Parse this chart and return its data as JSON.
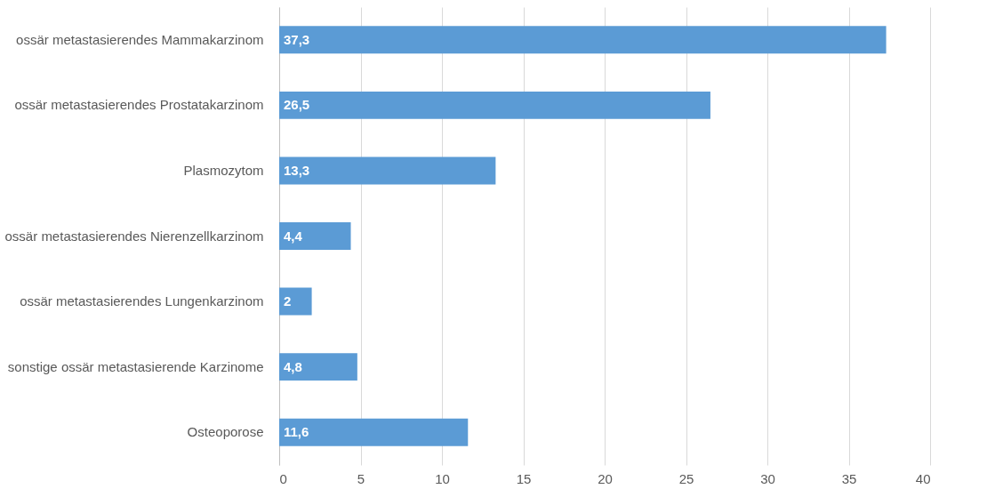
{
  "chart_data": {
    "type": "bar",
    "orientation": "horizontal",
    "categories": [
      "ossär metastasierendes Mammakarzinom",
      "ossär metastasierendes Prostatakarzinom",
      "Plasmozytom",
      "ossär metastasierendes Nierenzellkarzinom",
      "ossär metastasierendes Lungenkarzinom",
      "sonstige ossär metastasierende Karzinome",
      "Osteoporose"
    ],
    "values": [
      37.3,
      26.5,
      13.3,
      4.4,
      2,
      4.8,
      11.6
    ],
    "value_labels": [
      "37,3",
      "26,5",
      "13,3",
      "4,4",
      "2",
      "4,8",
      "11,6"
    ],
    "color": "#5b9bd5",
    "xlim": [
      0,
      40
    ],
    "xticks": [
      0,
      5,
      10,
      15,
      20,
      25,
      30,
      35,
      40
    ],
    "grid": "x"
  }
}
